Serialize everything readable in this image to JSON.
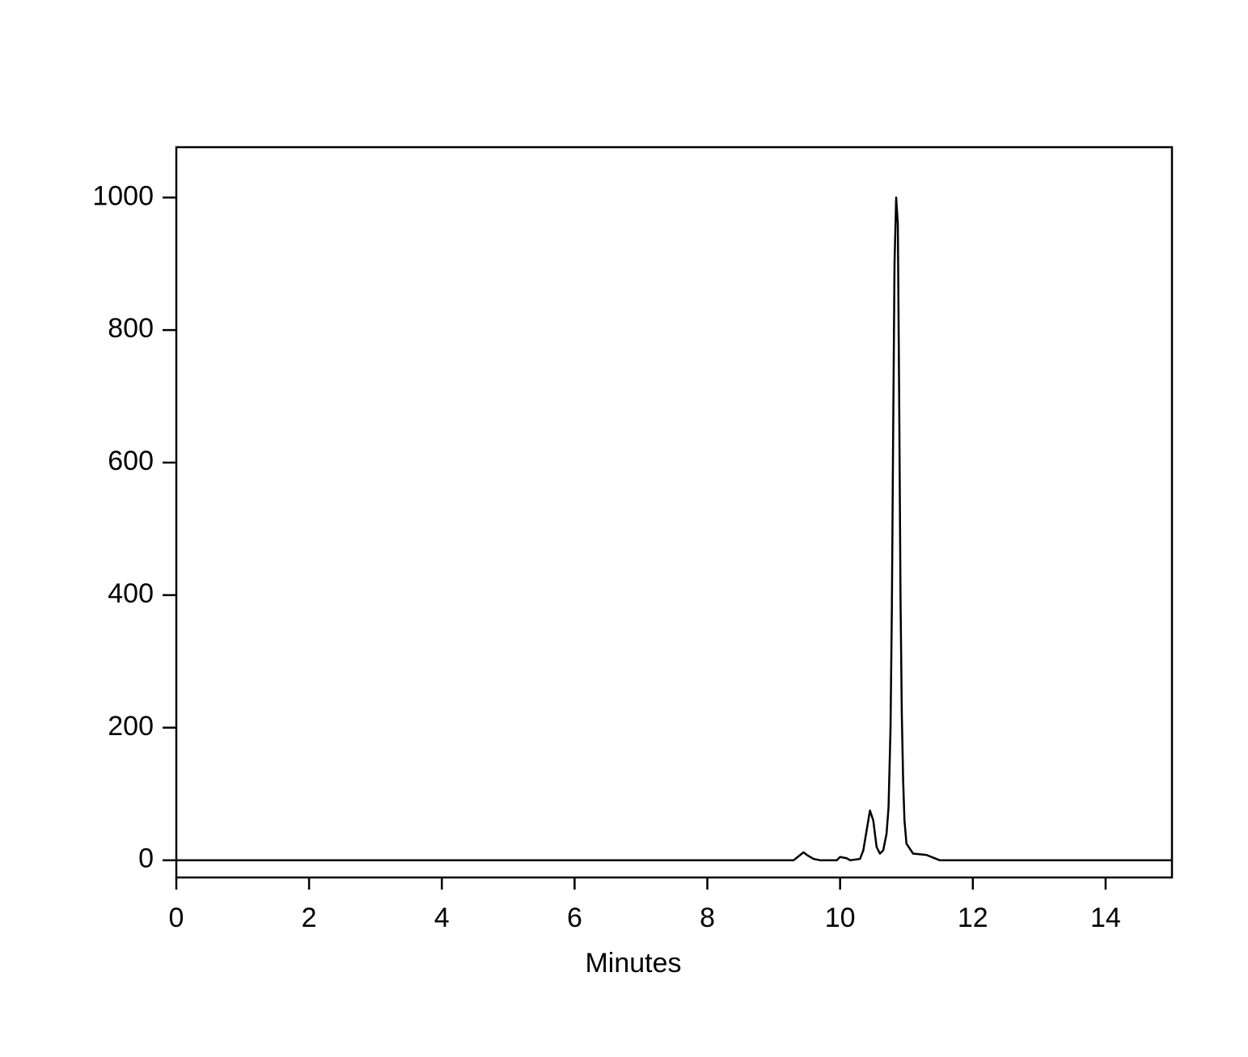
{
  "chart_data": {
    "type": "line",
    "x_label": "Minutes",
    "x": [
      0,
      9.3,
      9.4,
      9.45,
      9.5,
      9.6,
      9.7,
      9.95,
      10.0,
      10.1,
      10.15,
      10.3,
      10.35,
      10.4,
      10.45,
      10.5,
      10.55,
      10.6,
      10.65,
      10.7,
      10.73,
      10.76,
      10.78,
      10.8,
      10.82,
      10.845,
      10.87,
      10.89,
      10.91,
      10.93,
      10.95,
      10.97,
      11.0,
      11.1,
      11.3,
      11.4,
      11.5,
      15
    ],
    "series": [
      {
        "color": "#000000",
        "values": [
          0,
          0,
          8,
          12,
          8,
          2,
          0,
          0,
          5,
          3,
          0,
          2,
          15,
          45,
          75,
          60,
          20,
          10,
          15,
          40,
          80,
          200,
          380,
          650,
          900,
          1000,
          960,
          700,
          400,
          220,
          120,
          60,
          25,
          10,
          8,
          4,
          0,
          0
        ]
      }
    ],
    "xlim": [
      0,
      15
    ],
    "xticks": [
      0,
      2,
      4,
      6,
      8,
      10,
      12,
      14
    ],
    "ylim": [
      -26,
      1076
    ],
    "yticks": [
      0,
      200,
      400,
      600,
      800,
      1000
    ],
    "grid": false
  }
}
